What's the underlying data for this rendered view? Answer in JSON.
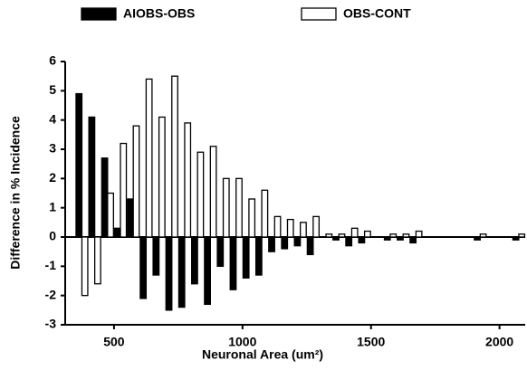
{
  "chart_data": {
    "type": "bar",
    "x_label": "Neuronal Area (um²)",
    "y_label": "Difference in % Incidence",
    "x": [
      375,
      425,
      475,
      525,
      575,
      625,
      675,
      725,
      775,
      825,
      875,
      925,
      975,
      1025,
      1075,
      1125,
      1175,
      1225,
      1275,
      1325,
      1375,
      1425,
      1475,
      1575,
      1625,
      1675,
      1925,
      2075
    ],
    "series": [
      {
        "name": "AIOBS-OBS",
        "color": "#000000",
        "values": [
          4.9,
          4.1,
          2.7,
          0.3,
          1.3,
          -2.1,
          -1.3,
          -2.5,
          -2.4,
          -1.6,
          -2.3,
          -1.0,
          -1.8,
          -1.4,
          -1.3,
          -0.5,
          -0.4,
          -0.3,
          -0.6,
          0,
          -0.1,
          -0.3,
          -0.2,
          -0.1,
          -0.1,
          -0.2,
          -0.1,
          -0.1
        ]
      },
      {
        "name": "OBS-CONT",
        "color": "#ffffff",
        "values": [
          -2.0,
          -1.6,
          1.5,
          3.2,
          3.8,
          5.4,
          4.1,
          5.5,
          3.9,
          2.9,
          3.1,
          2.0,
          2.0,
          1.3,
          1.6,
          0.7,
          0.6,
          0.5,
          0.7,
          0.1,
          0.1,
          0.3,
          0.2,
          0.1,
          0.1,
          0.2,
          0.1,
          0.1
        ]
      }
    ],
    "xlim": [
      310,
      2100
    ],
    "xticks": [
      500,
      1000,
      1500,
      2000
    ],
    "ylim": [
      -3,
      6
    ],
    "yticks": [
      -3,
      -2,
      -1,
      0,
      1,
      2,
      3,
      4,
      5,
      6
    ]
  }
}
